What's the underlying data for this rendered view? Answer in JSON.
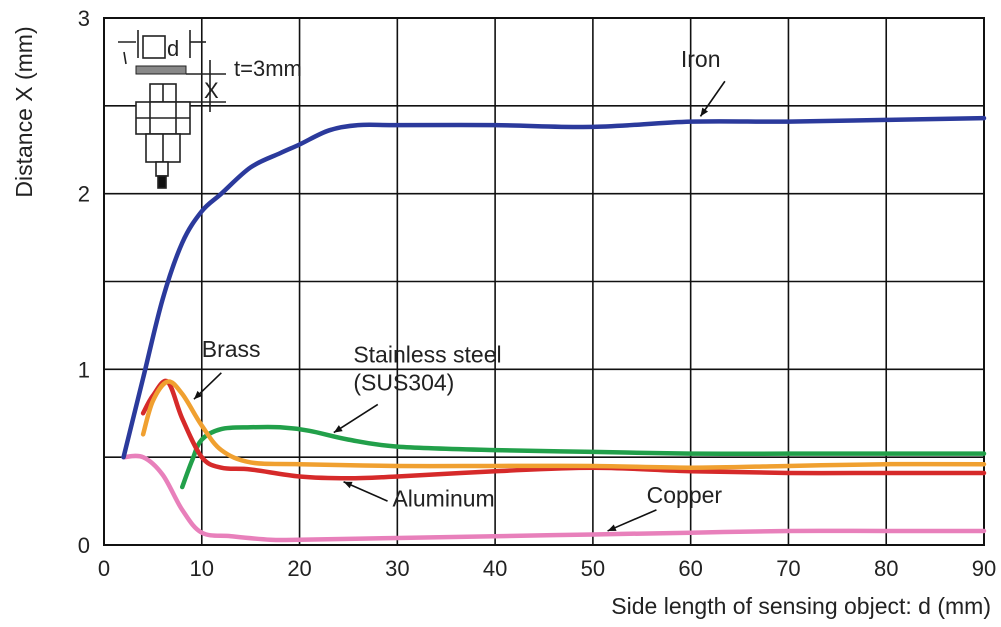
{
  "chart_data": {
    "type": "line",
    "title": "",
    "xlabel": "Side length of sensing object: d (mm)",
    "ylabel": "Distance X (mm)",
    "xlim": [
      0,
      90
    ],
    "ylim": [
      0,
      3
    ],
    "x_ticks": [
      "0",
      "10",
      "20",
      "30",
      "40",
      "50",
      "60",
      "70",
      "80",
      "90"
    ],
    "y_ticks": [
      "0",
      "1",
      "2",
      "3"
    ],
    "grid": true,
    "inset": {
      "d_label": "d",
      "x_label": "X",
      "thickness_label": "t=3mm"
    },
    "series": [
      {
        "name": "Iron",
        "color": "#2b3a9c",
        "points": [
          [
            2,
            0.5
          ],
          [
            4,
            0.95
          ],
          [
            6,
            1.4
          ],
          [
            8,
            1.72
          ],
          [
            10,
            1.9
          ],
          [
            12,
            2.0
          ],
          [
            15,
            2.15
          ],
          [
            18,
            2.23
          ],
          [
            20,
            2.28
          ],
          [
            23,
            2.36
          ],
          [
            26,
            2.39
          ],
          [
            30,
            2.39
          ],
          [
            40,
            2.39
          ],
          [
            50,
            2.38
          ],
          [
            60,
            2.41
          ],
          [
            70,
            2.41
          ],
          [
            80,
            2.42
          ],
          [
            90,
            2.43
          ]
        ]
      },
      {
        "name": "Brass",
        "color": "#f0a030",
        "points": [
          [
            4,
            0.63
          ],
          [
            5,
            0.82
          ],
          [
            6.5,
            0.93
          ],
          [
            8,
            0.86
          ],
          [
            10,
            0.68
          ],
          [
            12,
            0.54
          ],
          [
            15,
            0.47
          ],
          [
            20,
            0.46
          ],
          [
            30,
            0.45
          ],
          [
            40,
            0.45
          ],
          [
            50,
            0.45
          ],
          [
            60,
            0.44
          ],
          [
            70,
            0.45
          ],
          [
            80,
            0.46
          ],
          [
            90,
            0.46
          ]
        ]
      },
      {
        "name": "Stainless steel\n(SUS304)",
        "color": "#22a04a",
        "points": [
          [
            8,
            0.33
          ],
          [
            9,
            0.48
          ],
          [
            10,
            0.6
          ],
          [
            12,
            0.66
          ],
          [
            15,
            0.67
          ],
          [
            18,
            0.67
          ],
          [
            21,
            0.65
          ],
          [
            25,
            0.6
          ],
          [
            30,
            0.56
          ],
          [
            40,
            0.54
          ],
          [
            50,
            0.53
          ],
          [
            60,
            0.52
          ],
          [
            70,
            0.52
          ],
          [
            80,
            0.52
          ],
          [
            90,
            0.52
          ]
        ]
      },
      {
        "name": "Aluminum",
        "color": "#d62a2a",
        "points": [
          [
            4,
            0.75
          ],
          [
            5,
            0.85
          ],
          [
            6.5,
            0.93
          ],
          [
            8,
            0.72
          ],
          [
            10,
            0.5
          ],
          [
            12,
            0.44
          ],
          [
            15,
            0.43
          ],
          [
            20,
            0.39
          ],
          [
            25,
            0.38
          ],
          [
            30,
            0.39
          ],
          [
            40,
            0.42
          ],
          [
            50,
            0.44
          ],
          [
            60,
            0.42
          ],
          [
            70,
            0.41
          ],
          [
            80,
            0.41
          ],
          [
            90,
            0.41
          ]
        ]
      },
      {
        "name": "Copper",
        "color": "#e880bb",
        "points": [
          [
            2,
            0.5
          ],
          [
            4,
            0.5
          ],
          [
            6,
            0.4
          ],
          [
            8,
            0.2
          ],
          [
            10,
            0.07
          ],
          [
            13,
            0.05
          ],
          [
            17,
            0.03
          ],
          [
            20,
            0.03
          ],
          [
            30,
            0.04
          ],
          [
            40,
            0.05
          ],
          [
            50,
            0.06
          ],
          [
            60,
            0.07
          ],
          [
            70,
            0.08
          ],
          [
            80,
            0.08
          ],
          [
            90,
            0.08
          ]
        ]
      }
    ]
  }
}
